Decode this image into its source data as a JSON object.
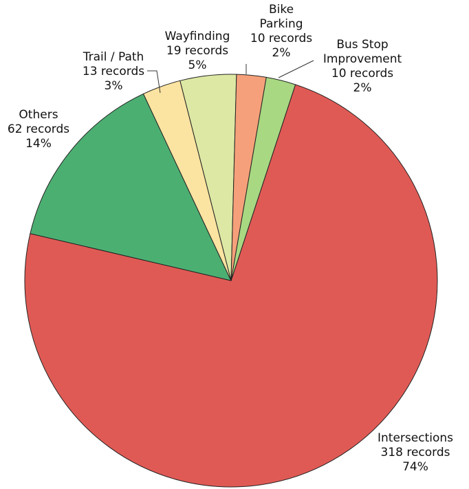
{
  "chart_data": {
    "type": "pie",
    "title": "",
    "slices": [
      {
        "category": "Intersections",
        "records_label": "318 records",
        "percent_label": "74%",
        "value": 318,
        "color": "#e05a55"
      },
      {
        "category": "Others",
        "records_label": "62 records",
        "percent_label": "14%",
        "value": 62,
        "color": "#4caf72"
      },
      {
        "category": "Trail / Path",
        "records_label": "13 records",
        "percent_label": "3%",
        "value": 13,
        "color": "#fbe3a1"
      },
      {
        "category": "Wayfinding",
        "records_label": "19 records",
        "percent_label": "5%",
        "value": 19,
        "color": "#dce8a4"
      },
      {
        "category": "Bike Parking",
        "records_label": "10 records",
        "percent_label": "2%",
        "value": 10,
        "color": "#f5a07a"
      },
      {
        "category": "Bus Stop Improvement",
        "records_label": "10 records",
        "percent_label": "2%",
        "value": 10,
        "color": "#a8d882"
      }
    ],
    "start_angle_deg": 0,
    "direction": "clockwise"
  }
}
